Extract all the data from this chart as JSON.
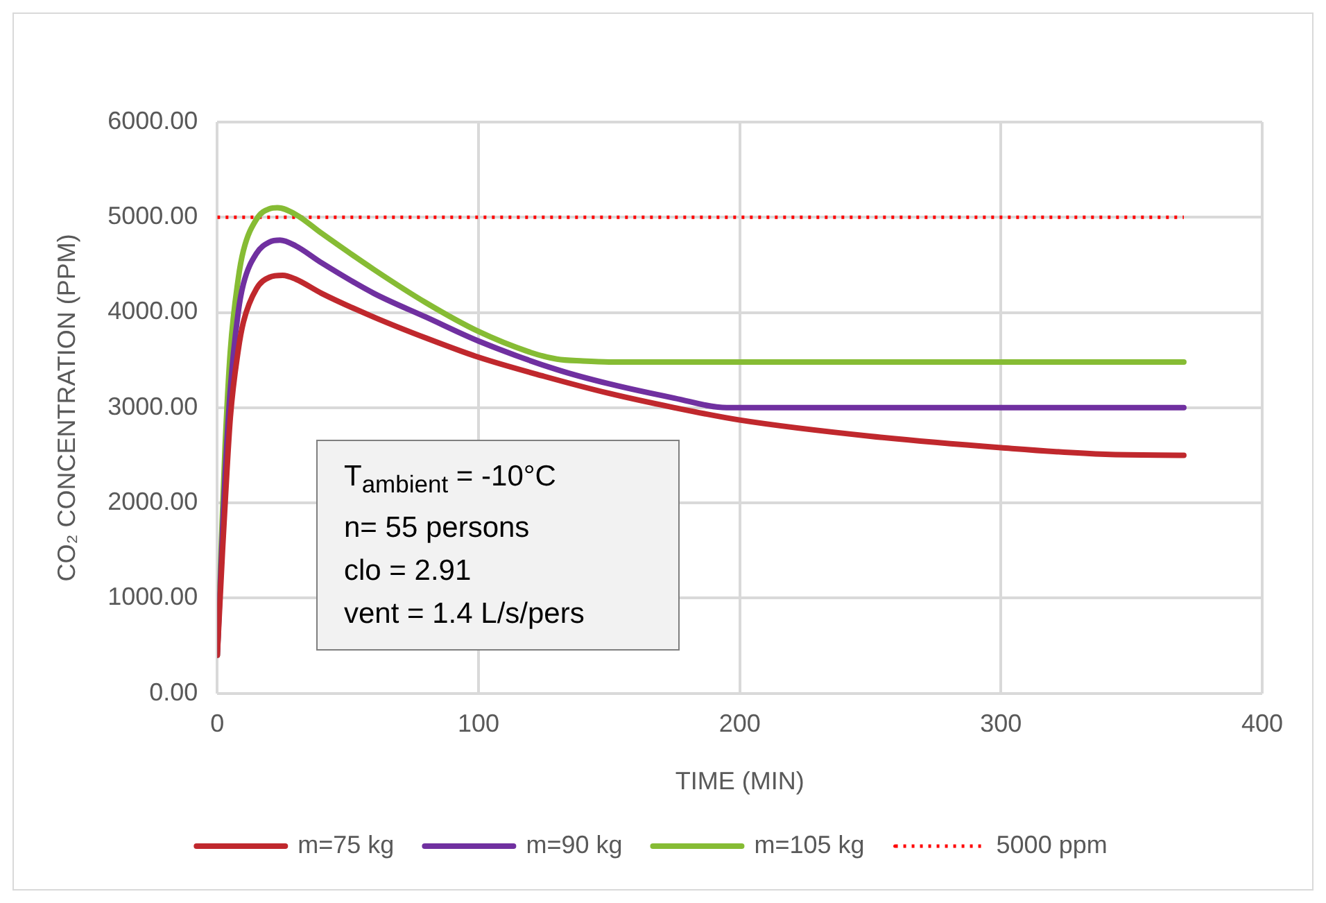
{
  "chart_data": {
    "type": "line",
    "xlabel": "TIME (MIN)",
    "ylabel": "CO₂ CONCENTRATION (PPM)",
    "xlim": [
      0,
      400
    ],
    "xticks": [
      0,
      100,
      200,
      300,
      400
    ],
    "ylim": [
      0,
      6000
    ],
    "yticks": [
      {
        "value": 0,
        "label": "0.00"
      },
      {
        "value": 1000,
        "label": "1000.00"
      },
      {
        "value": 2000,
        "label": "2000.00"
      },
      {
        "value": 3000,
        "label": "3000.00"
      },
      {
        "value": 4000,
        "label": "4000.00"
      },
      {
        "value": 5000,
        "label": "5000.00"
      },
      {
        "value": 6000,
        "label": "6000.00"
      }
    ],
    "grid": true,
    "legend": "bottom",
    "marker": "none",
    "line_style": "solid",
    "series": [
      {
        "name": "m=75 kg",
        "color": "#c0282d",
        "x": [
          0,
          2,
          3,
          5,
          8,
          10,
          15,
          20,
          25,
          30,
          40,
          60,
          80,
          100,
          125,
          150,
          175,
          200,
          250,
          300,
          340,
          370
        ],
        "values": [
          400,
          1500,
          2000,
          2900,
          3600,
          3900,
          4250,
          4370,
          4390,
          4350,
          4200,
          3950,
          3730,
          3530,
          3330,
          3150,
          3000,
          2870,
          2700,
          2580,
          2510,
          2500
        ]
      },
      {
        "name": "m=90 kg",
        "color": "#7030a0",
        "x": [
          0,
          2,
          3,
          5,
          8,
          10,
          15,
          20,
          24,
          30,
          40,
          60,
          80,
          100,
          130,
          150,
          175,
          195,
          250,
          300,
          370
        ],
        "values": [
          400,
          1700,
          2300,
          3200,
          4000,
          4300,
          4620,
          4740,
          4760,
          4700,
          4520,
          4200,
          3950,
          3700,
          3400,
          3250,
          3100,
          3000,
          3000,
          3000,
          3000
        ]
      },
      {
        "name": "m=105 kg",
        "color": "#86bc34",
        "x": [
          0,
          2,
          3,
          5,
          8,
          10,
          15,
          20,
          23,
          30,
          40,
          60,
          80,
          100,
          120,
          130,
          140,
          150,
          250,
          300,
          370
        ],
        "values": [
          400,
          1900,
          2600,
          3600,
          4350,
          4650,
          4980,
          5090,
          5100,
          5030,
          4830,
          4450,
          4100,
          3800,
          3580,
          3510,
          3490,
          3480,
          3480,
          3480,
          3480
        ]
      },
      {
        "name": "5000 ppm",
        "color": "#ff0000",
        "line_style": "dotted",
        "x": [
          0,
          370
        ],
        "values": [
          5000,
          5000
        ]
      }
    ],
    "annotations": [
      "T$_{ambient}$ = -10°C",
      "n= 55 persons",
      "clo = 2.91",
      "vent = 1.4 L/s/pers"
    ]
  }
}
